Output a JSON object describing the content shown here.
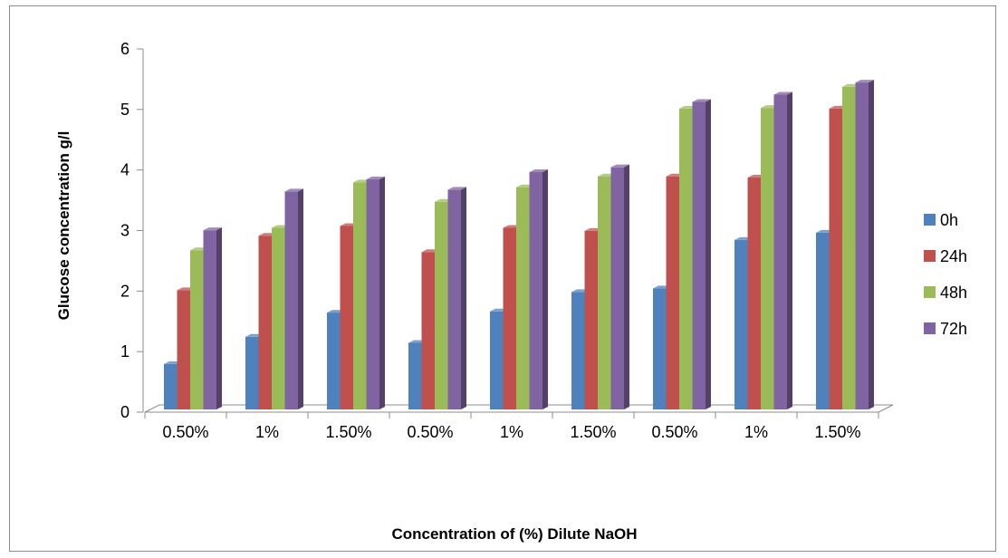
{
  "chart_data": {
    "type": "bar",
    "title": "",
    "xlabel": "Concentration of (%) Dilute NaOH",
    "ylabel": "Glucose concentration g/l",
    "categories": [
      "0.50%",
      "1%",
      "1.50%",
      "0.50%",
      "1%",
      "1.50%",
      "0.50%",
      "1%",
      "1.50%"
    ],
    "series": [
      {
        "name": "0h",
        "color": "#4f81bd",
        "values": [
          0.75,
          1.2,
          1.6,
          1.1,
          1.62,
          1.94,
          2.0,
          2.8,
          2.92
        ]
      },
      {
        "name": "24h",
        "color": "#c0504d",
        "values": [
          1.97,
          2.87,
          3.03,
          2.6,
          3.0,
          2.95,
          3.85,
          3.83,
          4.97
        ]
      },
      {
        "name": "48h",
        "color": "#9bbb59",
        "values": [
          2.63,
          3.0,
          3.75,
          3.43,
          3.67,
          3.85,
          4.97,
          4.98,
          5.33
        ]
      },
      {
        "name": "72h",
        "color": "#8064a2",
        "values": [
          2.96,
          3.6,
          3.8,
          3.63,
          3.92,
          4.0,
          5.08,
          5.2,
          5.4
        ]
      }
    ],
    "ylim": [
      0,
      6
    ],
    "yticks": [
      0,
      1,
      2,
      3,
      4,
      5,
      6
    ],
    "grid": false,
    "legend_position": "right"
  }
}
